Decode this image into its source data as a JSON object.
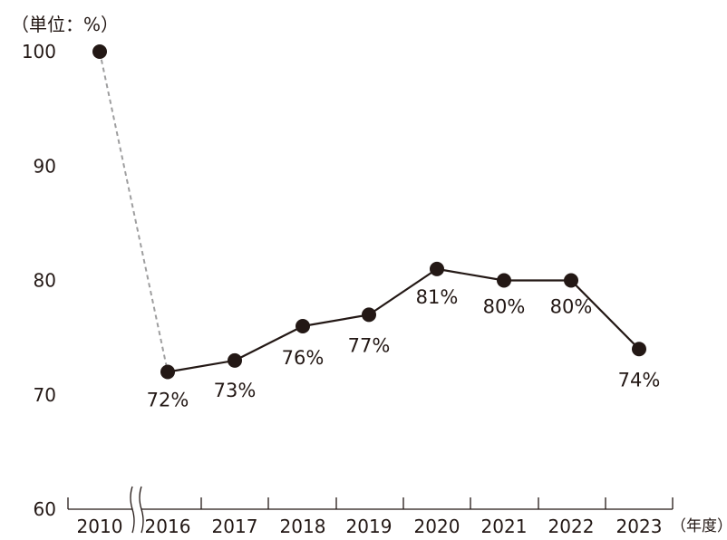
{
  "chart_data": {
    "type": "line",
    "title": "",
    "unit_label": "（単位：%）",
    "x_unit_label": "（年度）",
    "categories": [
      "2010",
      "2016",
      "2017",
      "2018",
      "2019",
      "2020",
      "2021",
      "2022",
      "2023"
    ],
    "values": [
      100,
      72,
      73,
      76,
      77,
      81,
      80,
      80,
      74
    ],
    "data_labels": [
      "",
      "72%",
      "73%",
      "76%",
      "77%",
      "81%",
      "80%",
      "80%",
      "74%"
    ],
    "y_ticks": [
      "60",
      "70",
      "80",
      "90",
      "100"
    ],
    "ylim": [
      60,
      100
    ],
    "axis_break_between": [
      "2010",
      "2016"
    ],
    "segment_2010_2016_style": "dashed",
    "grid": false,
    "colors": {
      "line": "#231815",
      "dashed": "#9e9e9f"
    }
  }
}
